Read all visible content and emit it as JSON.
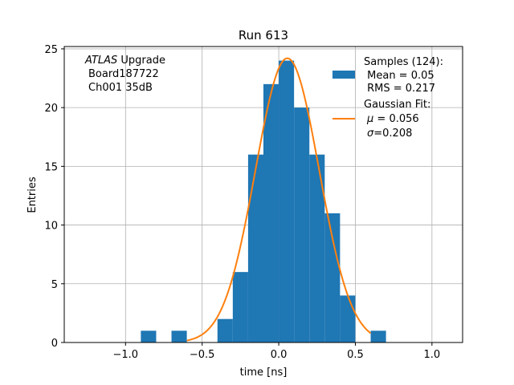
{
  "chart_data": {
    "type": "bar",
    "title": "Run 613",
    "xlabel": "time [ns]",
    "ylabel": "Entries",
    "xlim": [
      -1.4,
      1.2
    ],
    "ylim": [
      0,
      25.2
    ],
    "grid": true,
    "x_ticks": [
      -1.0,
      -0.5,
      0.0,
      0.5,
      1.0
    ],
    "x_tick_labels": [
      "−1.0",
      "−0.5",
      "0.0",
      "0.5",
      "1.0"
    ],
    "y_ticks": [
      0,
      5,
      10,
      15,
      20,
      25
    ],
    "y_tick_labels": [
      "0",
      "5",
      "10",
      "15",
      "20",
      "25"
    ],
    "annotation": {
      "italic": "ATLAS",
      "line1_rest": " Upgrade",
      "line2": "Board187722",
      "line3": "Ch001 35dB"
    },
    "legend_position": "upper right",
    "histogram": {
      "bin_width": 0.1,
      "bins": [
        {
          "x0": -0.9,
          "count": 1
        },
        {
          "x0": -0.7,
          "count": 1
        },
        {
          "x0": -0.4,
          "count": 2
        },
        {
          "x0": -0.3,
          "count": 6
        },
        {
          "x0": -0.2,
          "count": 16
        },
        {
          "x0": -0.1,
          "count": 22
        },
        {
          "x0": 0.0,
          "count": 24
        },
        {
          "x0": 0.1,
          "count": 20
        },
        {
          "x0": 0.2,
          "count": 16
        },
        {
          "x0": 0.3,
          "count": 11
        },
        {
          "x0": 0.4,
          "count": 4
        },
        {
          "x0": 0.6,
          "count": 1
        }
      ],
      "color": "#1f77b4",
      "legend_lines": [
        "Samples (124):",
        " Mean = 0.05",
        " RMS = 0.217"
      ]
    },
    "gaussian_fit": {
      "mu": 0.056,
      "sigma": 0.208,
      "amplitude": 24.2,
      "x_range": [
        -0.6,
        0.6
      ],
      "color": "#ff7f0e",
      "legend_title": "Gaussian Fit:",
      "legend_mu": " = 0.056",
      "legend_sigma": "=0.208"
    }
  }
}
